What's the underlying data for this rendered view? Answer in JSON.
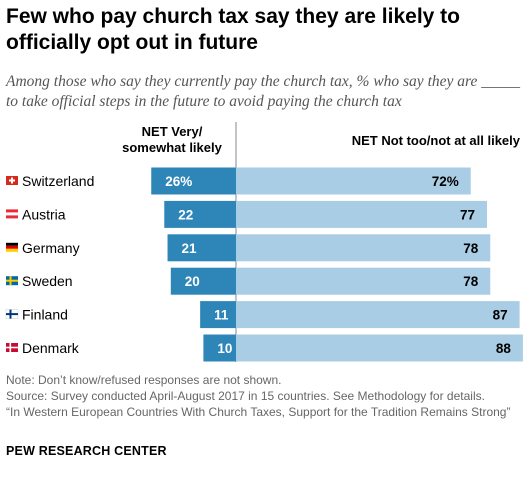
{
  "title": "Few who pay church tax say they are likely to officially opt out in future",
  "subtitle": "Among those who say they currently pay the church tax, % who say they are _____ to take official steps in the future to avoid paying the church tax",
  "chart_data": {
    "type": "bar",
    "orientation": "horizontal-diverging",
    "categories": [
      "Switzerland",
      "Austria",
      "Germany",
      "Sweden",
      "Finland",
      "Denmark"
    ],
    "series": [
      {
        "name": "NET Very/ somewhat likely",
        "values": [
          26,
          22,
          21,
          20,
          11,
          10
        ],
        "labels": [
          "26%",
          "22",
          "21",
          "20",
          "11",
          "10"
        ],
        "color": "#2e86b8"
      },
      {
        "name": "NET Not too/not at all likely",
        "values": [
          72,
          77,
          78,
          78,
          87,
          88
        ],
        "labels": [
          "72%",
          "77",
          "78",
          "78",
          "87",
          "88"
        ],
        "color": "#a8cde4"
      }
    ],
    "legend": [
      "NET Very/ somewhat likely",
      "NET Not too/not at all likely"
    ],
    "flags": [
      "switzerland-flag",
      "austria-flag",
      "germany-flag",
      "sweden-flag",
      "finland-flag",
      "denmark-flag"
    ]
  },
  "notes": [
    "Note: Don’t know/refused responses are not shown.",
    "Source: Survey conducted April-August 2017 in 15 countries. See Methodology for details.",
    "“In Western European Countries With Church Taxes, Support for the Tradition Remains Strong”"
  ],
  "brand": "PEW RESEARCH CENTER"
}
